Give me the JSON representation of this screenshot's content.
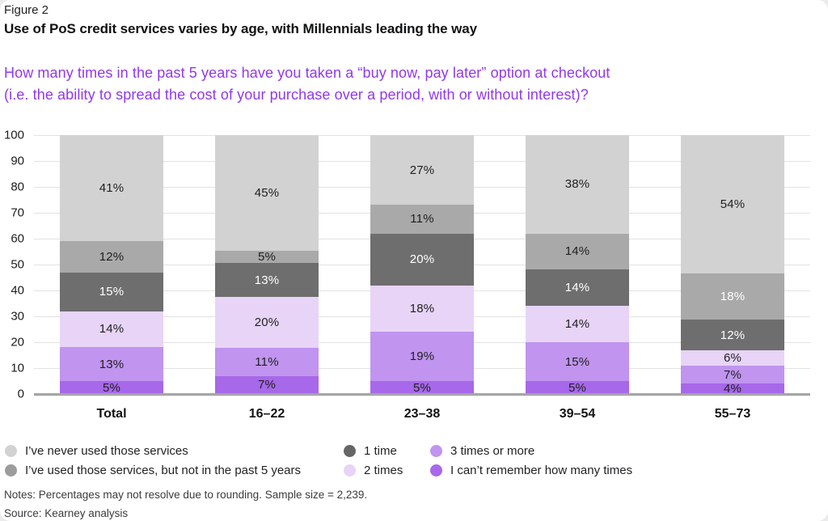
{
  "header": {
    "figure_label": "Figure 2",
    "title": "Use of PoS credit services varies by age, with Millennials leading the way",
    "question_line1": "How many times in the past 5 years have you taken a “buy now, pay later” option at checkout",
    "question_line2": "(i.e. the ability to spread the cost of your purchase over a period, with or without interest)?",
    "question_color": "#9138ec"
  },
  "chart_data": {
    "type": "bar",
    "subtype": "stacked-percentage-column",
    "title": "",
    "xlabel": "",
    "ylabel": "",
    "ylim": [
      0,
      100
    ],
    "yticks": [
      0,
      10,
      20,
      30,
      40,
      50,
      60,
      70,
      80,
      90,
      100
    ],
    "grid": true,
    "value_suffix": "%",
    "legend_position": "bottom",
    "categories": [
      "Total",
      "16–22",
      "23–38",
      "39–54",
      "55–73"
    ],
    "stack_order": "bottom-to-top",
    "series": [
      {
        "name": "I can’t remember how many times",
        "color": "#a768e9",
        "values": [
          5,
          7,
          5,
          5,
          4
        ],
        "label_colors": [
          "#1f1f1f",
          "#1f1f1f",
          "#1f1f1f",
          "#1f1f1f",
          "#1f1f1f"
        ]
      },
      {
        "name": "3 times or more",
        "color": "#c094ef",
        "values": [
          13,
          11,
          19,
          15,
          7
        ],
        "label_colors": [
          "#1f1f1f",
          "#1f1f1f",
          "#1f1f1f",
          "#1f1f1f",
          "#1f1f1f"
        ]
      },
      {
        "name": "2 times",
        "color": "#e7d4f7",
        "values": [
          14,
          20,
          18,
          14,
          6
        ],
        "label_colors": [
          "#1f1f1f",
          "#1f1f1f",
          "#1f1f1f",
          "#1f1f1f",
          "#1f1f1f"
        ]
      },
      {
        "name": "1 time",
        "color": "#6e6e6e",
        "values": [
          15,
          13,
          20,
          14,
          12
        ],
        "label_colors": [
          "#ffffff",
          "#ffffff",
          "#ffffff",
          "#ffffff",
          "#ffffff"
        ]
      },
      {
        "name": "I’ve used those services, but not in the past 5 years",
        "color": "#a9a9a9",
        "values": [
          12,
          5,
          11,
          14,
          18
        ],
        "label_colors": [
          "#1f1f1f",
          "#1f1f1f",
          "#1f1f1f",
          "#1f1f1f",
          "#ffffff"
        ]
      },
      {
        "name": "I’ve never used those services",
        "color": "#d2d2d2",
        "values": [
          41,
          45,
          27,
          38,
          54
        ],
        "label_colors": [
          "#1f1f1f",
          "#1f1f1f",
          "#1f1f1f",
          "#1f1f1f",
          "#1f1f1f"
        ]
      }
    ]
  },
  "legend": {
    "items": [
      {
        "label": "I’ve never used those services",
        "color": "#d2d2d2"
      },
      {
        "label": "1 time",
        "color": "#666666"
      },
      {
        "label": "3 times or more",
        "color": "#c094ef"
      },
      {
        "label": "I’ve used those services, but not in the past 5 years",
        "color": "#9c9c9c"
      },
      {
        "label": "2 times",
        "color": "#e7d4f7"
      },
      {
        "label": "I can’t remember how many times",
        "color": "#a768e9"
      }
    ]
  },
  "footer": {
    "notes": "Notes: Percentages may not resolve due to rounding. Sample size = 2,239.",
    "source": "Source: Kearney analysis"
  }
}
